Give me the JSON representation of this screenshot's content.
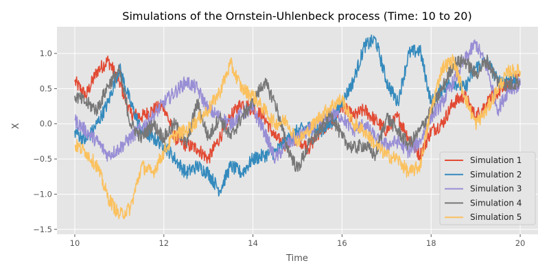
{
  "chart_data": {
    "type": "line",
    "title": "Simulations of the Ornstein-Uhlenbeck process (Time: 10 to 20)",
    "xlabel": "Time",
    "ylabel": "X",
    "xlim": [
      9.6,
      20.4
    ],
    "ylim": [
      -1.57,
      1.38
    ],
    "xticks": [
      10,
      12,
      14,
      16,
      18,
      20
    ],
    "xtick_labels": [
      "10",
      "12",
      "14",
      "16",
      "18",
      "20"
    ],
    "yticks": [
      -1.5,
      -1.0,
      -0.5,
      0.0,
      0.5,
      1.0
    ],
    "ytick_labels": [
      "−1.5",
      "−1.0",
      "−0.5",
      "0.0",
      "0.5",
      "1.0"
    ],
    "grid": true,
    "legend_position": "lower-right",
    "x": [
      10,
      10.25,
      10.5,
      10.75,
      11,
      11.25,
      11.5,
      11.75,
      12,
      12.25,
      12.5,
      12.75,
      13,
      13.25,
      13.5,
      13.75,
      14,
      14.25,
      14.5,
      14.75,
      15,
      15.25,
      15.5,
      15.75,
      16,
      16.25,
      16.5,
      16.75,
      17,
      17.25,
      17.5,
      17.75,
      18,
      18.25,
      18.5,
      18.75,
      19,
      19.25,
      19.5,
      19.75,
      20
    ],
    "series": [
      {
        "name": "Simulation 1",
        "color": "#E24A33",
        "values": [
          0.6,
          0.4,
          0.75,
          0.9,
          0.6,
          0.15,
          0.1,
          0.2,
          0.25,
          -0.2,
          -0.3,
          -0.35,
          -0.5,
          -0.2,
          0.1,
          0.3,
          0.2,
          0.1,
          -0.2,
          -0.3,
          -0.2,
          -0.35,
          -0.1,
          0.0,
          0.25,
          0.1,
          0.2,
          0.05,
          -0.1,
          0.1,
          -0.2,
          -0.45,
          -0.1,
          0.0,
          0.3,
          0.4,
          0.1,
          0.3,
          0.45,
          0.55,
          0.7
        ]
      },
      {
        "name": "Simulation 2",
        "color": "#348ABD",
        "values": [
          -0.1,
          -0.25,
          0.0,
          0.3,
          0.8,
          0.3,
          -0.1,
          -0.2,
          -0.3,
          -0.5,
          -0.7,
          -0.6,
          -0.7,
          -0.95,
          -0.6,
          -0.7,
          -0.5,
          -0.45,
          -0.4,
          -0.25,
          -0.1,
          -0.05,
          -0.1,
          0.0,
          0.3,
          0.6,
          1.1,
          1.2,
          0.6,
          0.3,
          1.0,
          1.05,
          0.3,
          0.5,
          0.6,
          0.5,
          0.8,
          0.9,
          0.6,
          0.65,
          0.6
        ]
      },
      {
        "name": "Simulation 3",
        "color": "#988ED5",
        "values": [
          0.05,
          -0.1,
          -0.25,
          -0.45,
          -0.35,
          -0.2,
          -0.05,
          0.1,
          0.3,
          0.45,
          0.6,
          0.5,
          0.2,
          0.1,
          0.0,
          0.15,
          0.2,
          -0.1,
          -0.5,
          -0.3,
          -0.2,
          -0.1,
          0.0,
          0.15,
          0.1,
          -0.1,
          0.0,
          -0.2,
          -0.3,
          -0.25,
          -0.4,
          -0.25,
          0.1,
          0.3,
          0.6,
          0.9,
          1.15,
          0.8,
          0.2,
          0.5,
          0.55
        ]
      },
      {
        "name": "Simulation 4",
        "color": "#777777",
        "values": [
          0.4,
          0.3,
          0.2,
          0.55,
          0.75,
          0.0,
          -0.2,
          0.0,
          -0.2,
          0.0,
          -0.3,
          0.3,
          -0.2,
          0.1,
          -0.2,
          0.1,
          0.3,
          0.6,
          0.3,
          -0.3,
          -0.65,
          -0.3,
          -0.1,
          0.15,
          -0.2,
          -0.35,
          -0.3,
          -0.45,
          0.1,
          -0.1,
          -0.3,
          -0.1,
          0.2,
          0.5,
          0.85,
          0.9,
          0.7,
          0.9,
          0.6,
          0.55,
          0.6
        ]
      },
      {
        "name": "Simulation 5",
        "color": "#FBC15E",
        "values": [
          -0.3,
          -0.4,
          -0.6,
          -1.05,
          -1.3,
          -1.2,
          -0.6,
          -0.7,
          -0.4,
          -0.15,
          -0.1,
          0.05,
          0.2,
          0.45,
          0.85,
          0.5,
          0.4,
          0.2,
          0.0,
          0.05,
          -0.25,
          -0.1,
          0.1,
          0.25,
          0.35,
          0.0,
          -0.1,
          -0.3,
          -0.45,
          -0.5,
          -0.7,
          -0.6,
          0.2,
          0.8,
          0.9,
          0.4,
          0.0,
          0.2,
          0.5,
          0.75,
          0.75
        ]
      }
    ]
  }
}
